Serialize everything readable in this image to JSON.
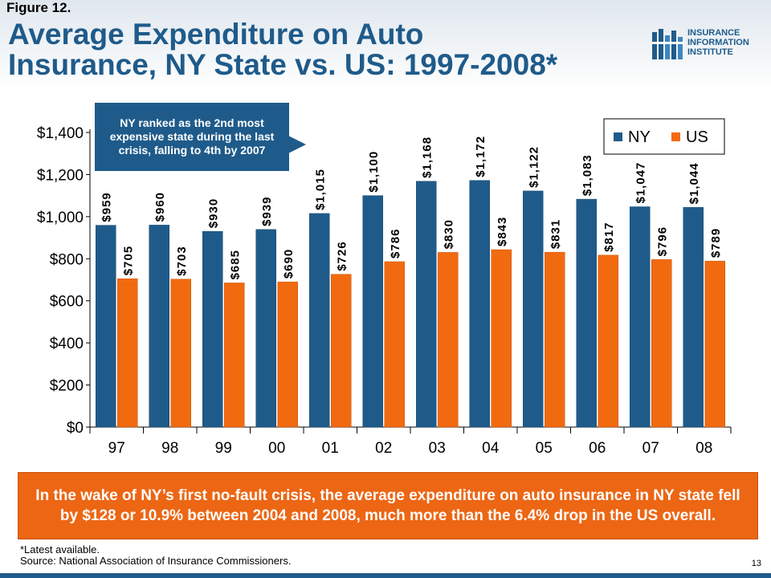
{
  "header": {
    "figure_label": "Figure 12.",
    "title_line1": "Average Expenditure on Auto",
    "title_line2": "Insurance, NY State vs. US: 1997-2008*"
  },
  "logo": {
    "line1": "INSURANCE",
    "line2": "INFORMATION",
    "line3": "INSTITUTE"
  },
  "callout": {
    "text": "NY ranked as the 2nd most expensive state during the last crisis, falling to 4th by 2007"
  },
  "summary": {
    "text": "In the wake of NY’s first no-fault crisis, the average expenditure on auto insurance in NY state fell by $128 or 10.9% between 2004 and 2008, much more than the 6.4% drop in the US overall."
  },
  "footnote": {
    "line1": "*Latest available.",
    "line2": "Source: National Association of Insurance Commissioners."
  },
  "page_number": "13",
  "colors": {
    "ny": "#1f5b8a",
    "us": "#f26a10",
    "accent": "#ec6614"
  },
  "chart_data": {
    "type": "bar",
    "categories": [
      "97",
      "98",
      "99",
      "00",
      "01",
      "02",
      "03",
      "04",
      "05",
      "06",
      "07",
      "08"
    ],
    "series": [
      {
        "name": "NY",
        "color": "#1f5b8a",
        "values": [
          959,
          960,
          930,
          939,
          1015,
          1100,
          1168,
          1172,
          1122,
          1083,
          1047,
          1044
        ],
        "labels": [
          "$959",
          "$960",
          "$930",
          "$939",
          "$1,015",
          "$1,100",
          "$1,168",
          "$1,172",
          "$1,122",
          "$1,083",
          "$1,047",
          "$1,044"
        ]
      },
      {
        "name": "US",
        "color": "#f26a10",
        "values": [
          705,
          703,
          685,
          690,
          726,
          786,
          830,
          843,
          831,
          817,
          796,
          789
        ],
        "labels": [
          "$705",
          "$703",
          "$685",
          "$690",
          "$726",
          "$786",
          "$830",
          "$843",
          "$831",
          "$817",
          "$796",
          "$789"
        ]
      }
    ],
    "ylim": [
      0,
      1400
    ],
    "yticks": [
      0,
      200,
      400,
      600,
      800,
      1000,
      1200,
      1400
    ],
    "ytick_labels": [
      "$0",
      "$200",
      "$400",
      "$600",
      "$800",
      "$1,000",
      "$1,200",
      "$1,400"
    ],
    "legend_position": "top-right",
    "grid": false
  }
}
